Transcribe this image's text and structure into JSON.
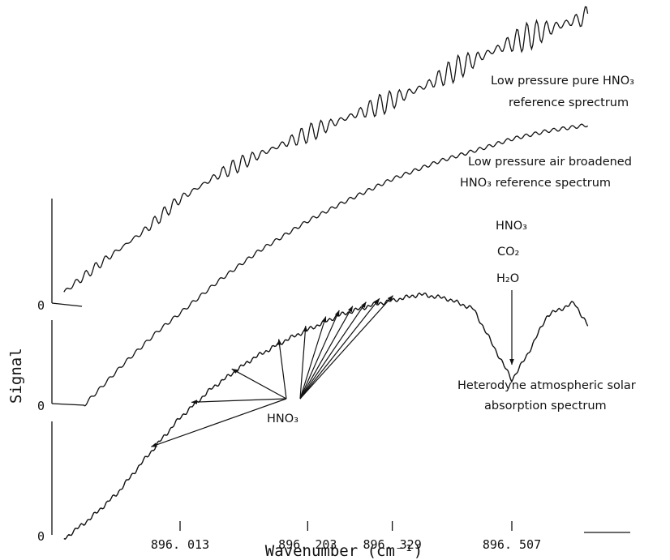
{
  "chart_data": {
    "type": "line",
    "xlabel": "Wavenumber (cm⁻¹)",
    "ylabel": "Signal",
    "x_ticks": [
      "896. 013",
      "896. 203",
      "896. 329",
      "896. 507"
    ],
    "x_tick_values": [
      896.013,
      896.203,
      896.329,
      896.507
    ],
    "xlim": [
      895.84,
      896.63
    ],
    "zero_label": "0",
    "grid": false,
    "series": [
      {
        "name": "Low pressure pure HNO3 reference sprectrum",
        "label_lines": [
          "Low pressure pure HNO₃",
          "reference sprectrum"
        ],
        "baseline_level": 0,
        "points": [
          [
            895.84,
            0.05
          ],
          [
            895.9,
            0.22
          ],
          [
            895.96,
            0.38
          ],
          [
            896.013,
            0.55
          ],
          [
            896.07,
            0.68
          ],
          [
            896.12,
            0.77
          ],
          [
            896.17,
            0.85
          ],
          [
            896.203,
            0.9
          ],
          [
            896.25,
            0.97
          ],
          [
            896.3,
            1.04
          ],
          [
            896.329,
            1.08
          ],
          [
            896.38,
            1.16
          ],
          [
            896.43,
            1.26
          ],
          [
            896.47,
            1.33
          ],
          [
            896.507,
            1.39
          ],
          [
            896.56,
            1.46
          ],
          [
            896.62,
            1.53
          ]
        ],
        "absorption_lines_from": 895.84,
        "absorption_lines_to": 896.62
      },
      {
        "name": "Low pressure air broadened HNO3 reference spectrum",
        "label_lines": [
          "Low pressure air broadened",
          "HNO₃ reference spectrum"
        ],
        "baseline_level": 0,
        "points": [
          [
            895.87,
            0.0
          ],
          [
            895.93,
            0.21
          ],
          [
            895.98,
            0.37
          ],
          [
            896.013,
            0.46
          ],
          [
            896.07,
            0.62
          ],
          [
            896.13,
            0.77
          ],
          [
            896.203,
            0.92
          ],
          [
            896.26,
            1.02
          ],
          [
            896.329,
            1.13
          ],
          [
            896.4,
            1.22
          ],
          [
            896.47,
            1.29
          ],
          [
            896.507,
            1.33
          ],
          [
            896.56,
            1.37
          ],
          [
            896.62,
            1.4
          ]
        ]
      },
      {
        "name": "Heterodyne atmospheric solar absorption spectrum",
        "label_lines": [
          "Heterodyne atmospheric solar",
          "absorption spectrum"
        ],
        "baseline_level": 0,
        "points": [
          [
            895.84,
            0.0
          ],
          [
            895.88,
            0.1
          ],
          [
            895.92,
            0.22
          ],
          [
            895.96,
            0.38
          ],
          [
            896.013,
            0.58
          ],
          [
            896.06,
            0.72
          ],
          [
            896.12,
            0.86
          ],
          [
            896.17,
            0.95
          ],
          [
            896.203,
            1.0
          ],
          [
            896.25,
            1.07
          ],
          [
            896.3,
            1.12
          ],
          [
            896.329,
            1.14
          ],
          [
            896.37,
            1.17
          ],
          [
            896.41,
            1.15
          ],
          [
            896.45,
            1.1
          ],
          [
            896.48,
            0.92
          ],
          [
            896.507,
            0.76
          ],
          [
            896.53,
            0.88
          ],
          [
            896.56,
            1.07
          ],
          [
            896.6,
            1.13
          ],
          [
            896.62,
            1.02
          ]
        ]
      }
    ],
    "annotations": {
      "hno3_arrows_label": "HNO₃",
      "species_stack": [
        "HNO₃",
        "CO₂",
        "H₂O"
      ]
    }
  }
}
